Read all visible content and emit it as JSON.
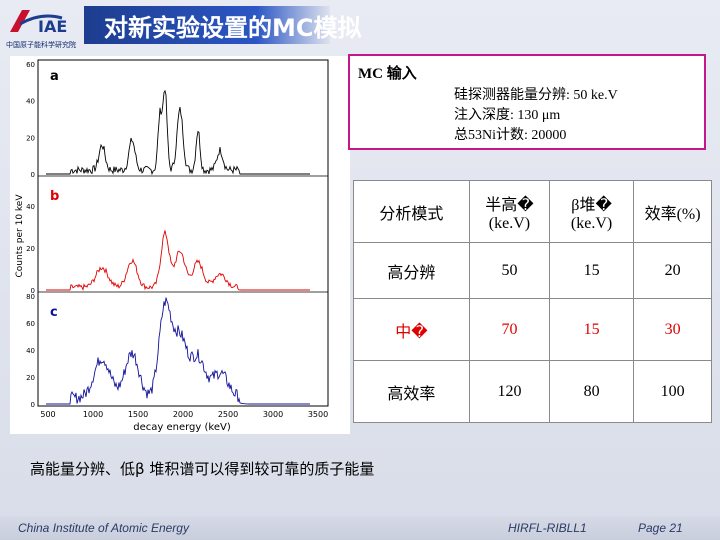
{
  "header": {
    "title": "对新实验设置的MC模拟",
    "logo_text": "IAE",
    "org_name": "中国原子能科学研究院"
  },
  "info_box": {
    "heading": "MC 输入",
    "lines": [
      "硅探测器能量分辨: 50 ke.V",
      "注入深度: 130 μm",
      "总53Ni计数: 20000"
    ]
  },
  "figure": {
    "panels": [
      {
        "label": "a",
        "color": "#000000"
      },
      {
        "label": "b",
        "color": "#e00000"
      },
      {
        "label": "c",
        "color": "#10109a"
      }
    ],
    "y_label": "Counts per 10 keV",
    "x_label": "decay energy (keV)",
    "x_ticks": [
      "500",
      "1000",
      "1500",
      "2000",
      "2500",
      "3000",
      "3500"
    ],
    "y_ticks_a": [
      "60",
      "40",
      "20",
      "0"
    ],
    "y_ticks_b": [
      "40",
      "20",
      "0"
    ],
    "y_ticks_c": [
      "80",
      "60",
      "40",
      "20",
      "0"
    ]
  },
  "table": {
    "headers": [
      "分析模式",
      "半高�\n(ke.V)",
      "β堆�\n(ke.V)",
      "效率(%)"
    ],
    "rows": [
      {
        "mode": "高分辨",
        "fwhm": "50",
        "pileup": "15",
        "eff": "20",
        "highlight": false
      },
      {
        "mode": "中�",
        "fwhm": "70",
        "pileup": "15",
        "eff": "30",
        "highlight": true
      },
      {
        "mode": "高效率",
        "fwhm": "120",
        "pileup": "80",
        "eff": "100",
        "highlight": false
      }
    ]
  },
  "conclusion": "高能量分辨、低β 堆积谱可以得到较可靠的质子能量",
  "footer": {
    "left": "China Institute of Atomic Energy",
    "center": "HIRFL-RIBLL1",
    "right": "Page 21"
  }
}
